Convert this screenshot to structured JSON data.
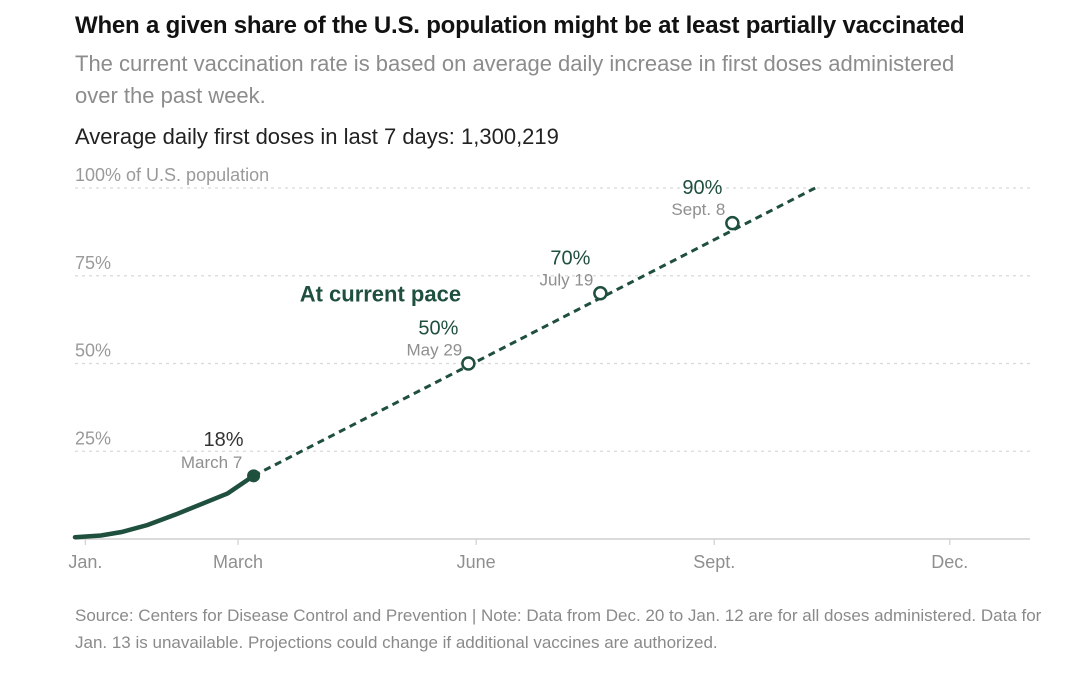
{
  "header": {
    "title": "When a given share of the U.S. population might be at least partially vaccinated",
    "subtitle": "The current vaccination rate is based on average daily increase in first doses administered over the past week.",
    "stat": "Average daily first doses in last 7 days: 1,300,219"
  },
  "source_note": "Source: Centers for Disease Control and Prevention | Note: Data from Dec. 20 to Jan. 12 are for all doses administered. Data for Jan. 13 is unavailable. Projections could change if additional vaccines are authorized.",
  "colors": {
    "line": "#1f4f3d",
    "grid": "#d9d9d9",
    "axis": "#cfcfcf"
  },
  "chart_data": {
    "type": "line",
    "title": "When a given share of the U.S. population might be at least partially vaccinated",
    "ylim": [
      0,
      100
    ],
    "y_ticks": [
      {
        "value": 25,
        "label": "25%"
      },
      {
        "value": 50,
        "label": "50%"
      },
      {
        "value": 75,
        "label": "75%"
      },
      {
        "value": 100,
        "label": "100% of U.S. population"
      }
    ],
    "x_ticks": [
      {
        "date": "2021-01-01",
        "label": "Jan."
      },
      {
        "date": "2021-03-01",
        "label": "March"
      },
      {
        "date": "2021-06-01",
        "label": "June"
      },
      {
        "date": "2021-09-01",
        "label": "Sept."
      },
      {
        "date": "2021-12-01",
        "label": "Dec."
      }
    ],
    "xlim": [
      "2020-12-28",
      "2022-01-01"
    ],
    "grid": true,
    "series": [
      {
        "style": "solid",
        "points": [
          {
            "x": "2020-12-28",
            "y": 0.5
          },
          {
            "x": "2021-01-07",
            "y": 1
          },
          {
            "x": "2021-01-15",
            "y": 2
          },
          {
            "x": "2021-01-25",
            "y": 4
          },
          {
            "x": "2021-02-05",
            "y": 7
          },
          {
            "x": "2021-02-15",
            "y": 10
          },
          {
            "x": "2021-02-25",
            "y": 13
          },
          {
            "x": "2021-03-07",
            "y": 18
          }
        ]
      },
      {
        "name": "At current pace",
        "style": "dashed",
        "points": [
          {
            "x": "2021-03-07",
            "y": 18
          },
          {
            "x": "2021-10-10",
            "y": 100
          }
        ]
      }
    ],
    "annotations": [
      {
        "x": "2021-03-07",
        "y": 18,
        "pct": "18%",
        "date_label": "March 7",
        "marker": "filled"
      },
      {
        "x": "2021-05-29",
        "y": 50,
        "pct": "50%",
        "date_label": "May 29",
        "marker": "open"
      },
      {
        "x": "2021-07-19",
        "y": 70,
        "pct": "70%",
        "date_label": "July 19",
        "marker": "open"
      },
      {
        "x": "2021-09-08",
        "y": 90,
        "pct": "90%",
        "date_label": "Sept. 8",
        "marker": "open"
      }
    ]
  }
}
